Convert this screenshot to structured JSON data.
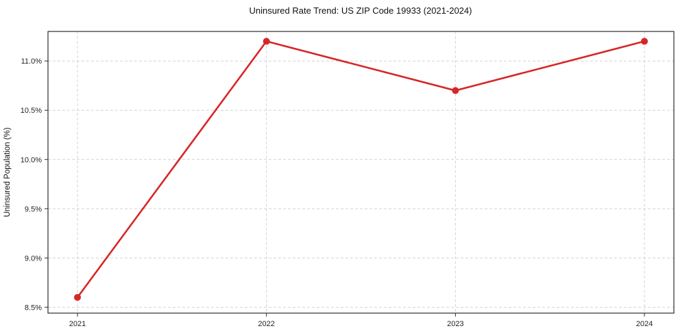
{
  "chart_data": {
    "type": "line",
    "title": "Uninsured Rate Trend: US ZIP Code 19933 (2021-2024)",
    "xlabel": "",
    "ylabel": "Uninsured Population (%)",
    "categories": [
      "2021",
      "2022",
      "2023",
      "2024"
    ],
    "series": [
      {
        "name": "Uninsured Population (%)",
        "values": [
          8.6,
          11.2,
          10.7,
          11.2
        ]
      }
    ],
    "y_ticks": [
      8.5,
      9.0,
      9.5,
      10.0,
      10.5,
      11.0
    ],
    "y_tick_labels": [
      "8.5%",
      "9.0%",
      "9.5%",
      "10.0%",
      "10.5%",
      "11.0%"
    ],
    "ylim": [
      8.44,
      11.3
    ],
    "grid": true,
    "grid_style": "dashed",
    "legend_position": "none",
    "marker": "circle",
    "colors": {
      "line": "#d62728",
      "marker": "#d62728",
      "grid": "#d2d2d2",
      "frame": "#2b2b2b",
      "background": "#ffffff"
    }
  }
}
